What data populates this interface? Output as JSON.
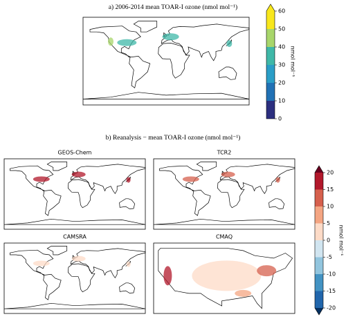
{
  "chart_data": [
    {
      "type": "map",
      "title": "a) 2006-2014 mean TOAR-I ozone (nmol mol⁻¹)",
      "colorbar": {
        "lim": [
          0,
          60
        ],
        "ticks": [
          0,
          10,
          20,
          30,
          40,
          50,
          60
        ],
        "label": "nmol mol⁻¹",
        "extend": "max",
        "colors": [
          "#2c2f7f",
          "#2171b5",
          "#2a9ec7",
          "#3fb8a8",
          "#a8d66b",
          "#f8e71c"
        ]
      }
    },
    {
      "type": "map-panels",
      "title": "b) Reanalysis − mean TOAR-I ozone (nmol mol⁻¹)",
      "panels": [
        "GEOS-Chem",
        "TCR2",
        "CAMSRA",
        "CMAQ"
      ],
      "colorbar": {
        "lim": [
          -20,
          20
        ],
        "ticks": [
          -20,
          -15,
          -10,
          -5,
          0,
          5,
          10,
          15,
          20
        ],
        "label": "nmol mol⁻¹",
        "extend": "both",
        "colors": [
          "#053061",
          "#2166ac",
          "#4393c3",
          "#92c5de",
          "#d1e5f0",
          "#fddbc7",
          "#f4a582",
          "#d6604d",
          "#b2182b",
          "#67001f"
        ]
      }
    }
  ]
}
